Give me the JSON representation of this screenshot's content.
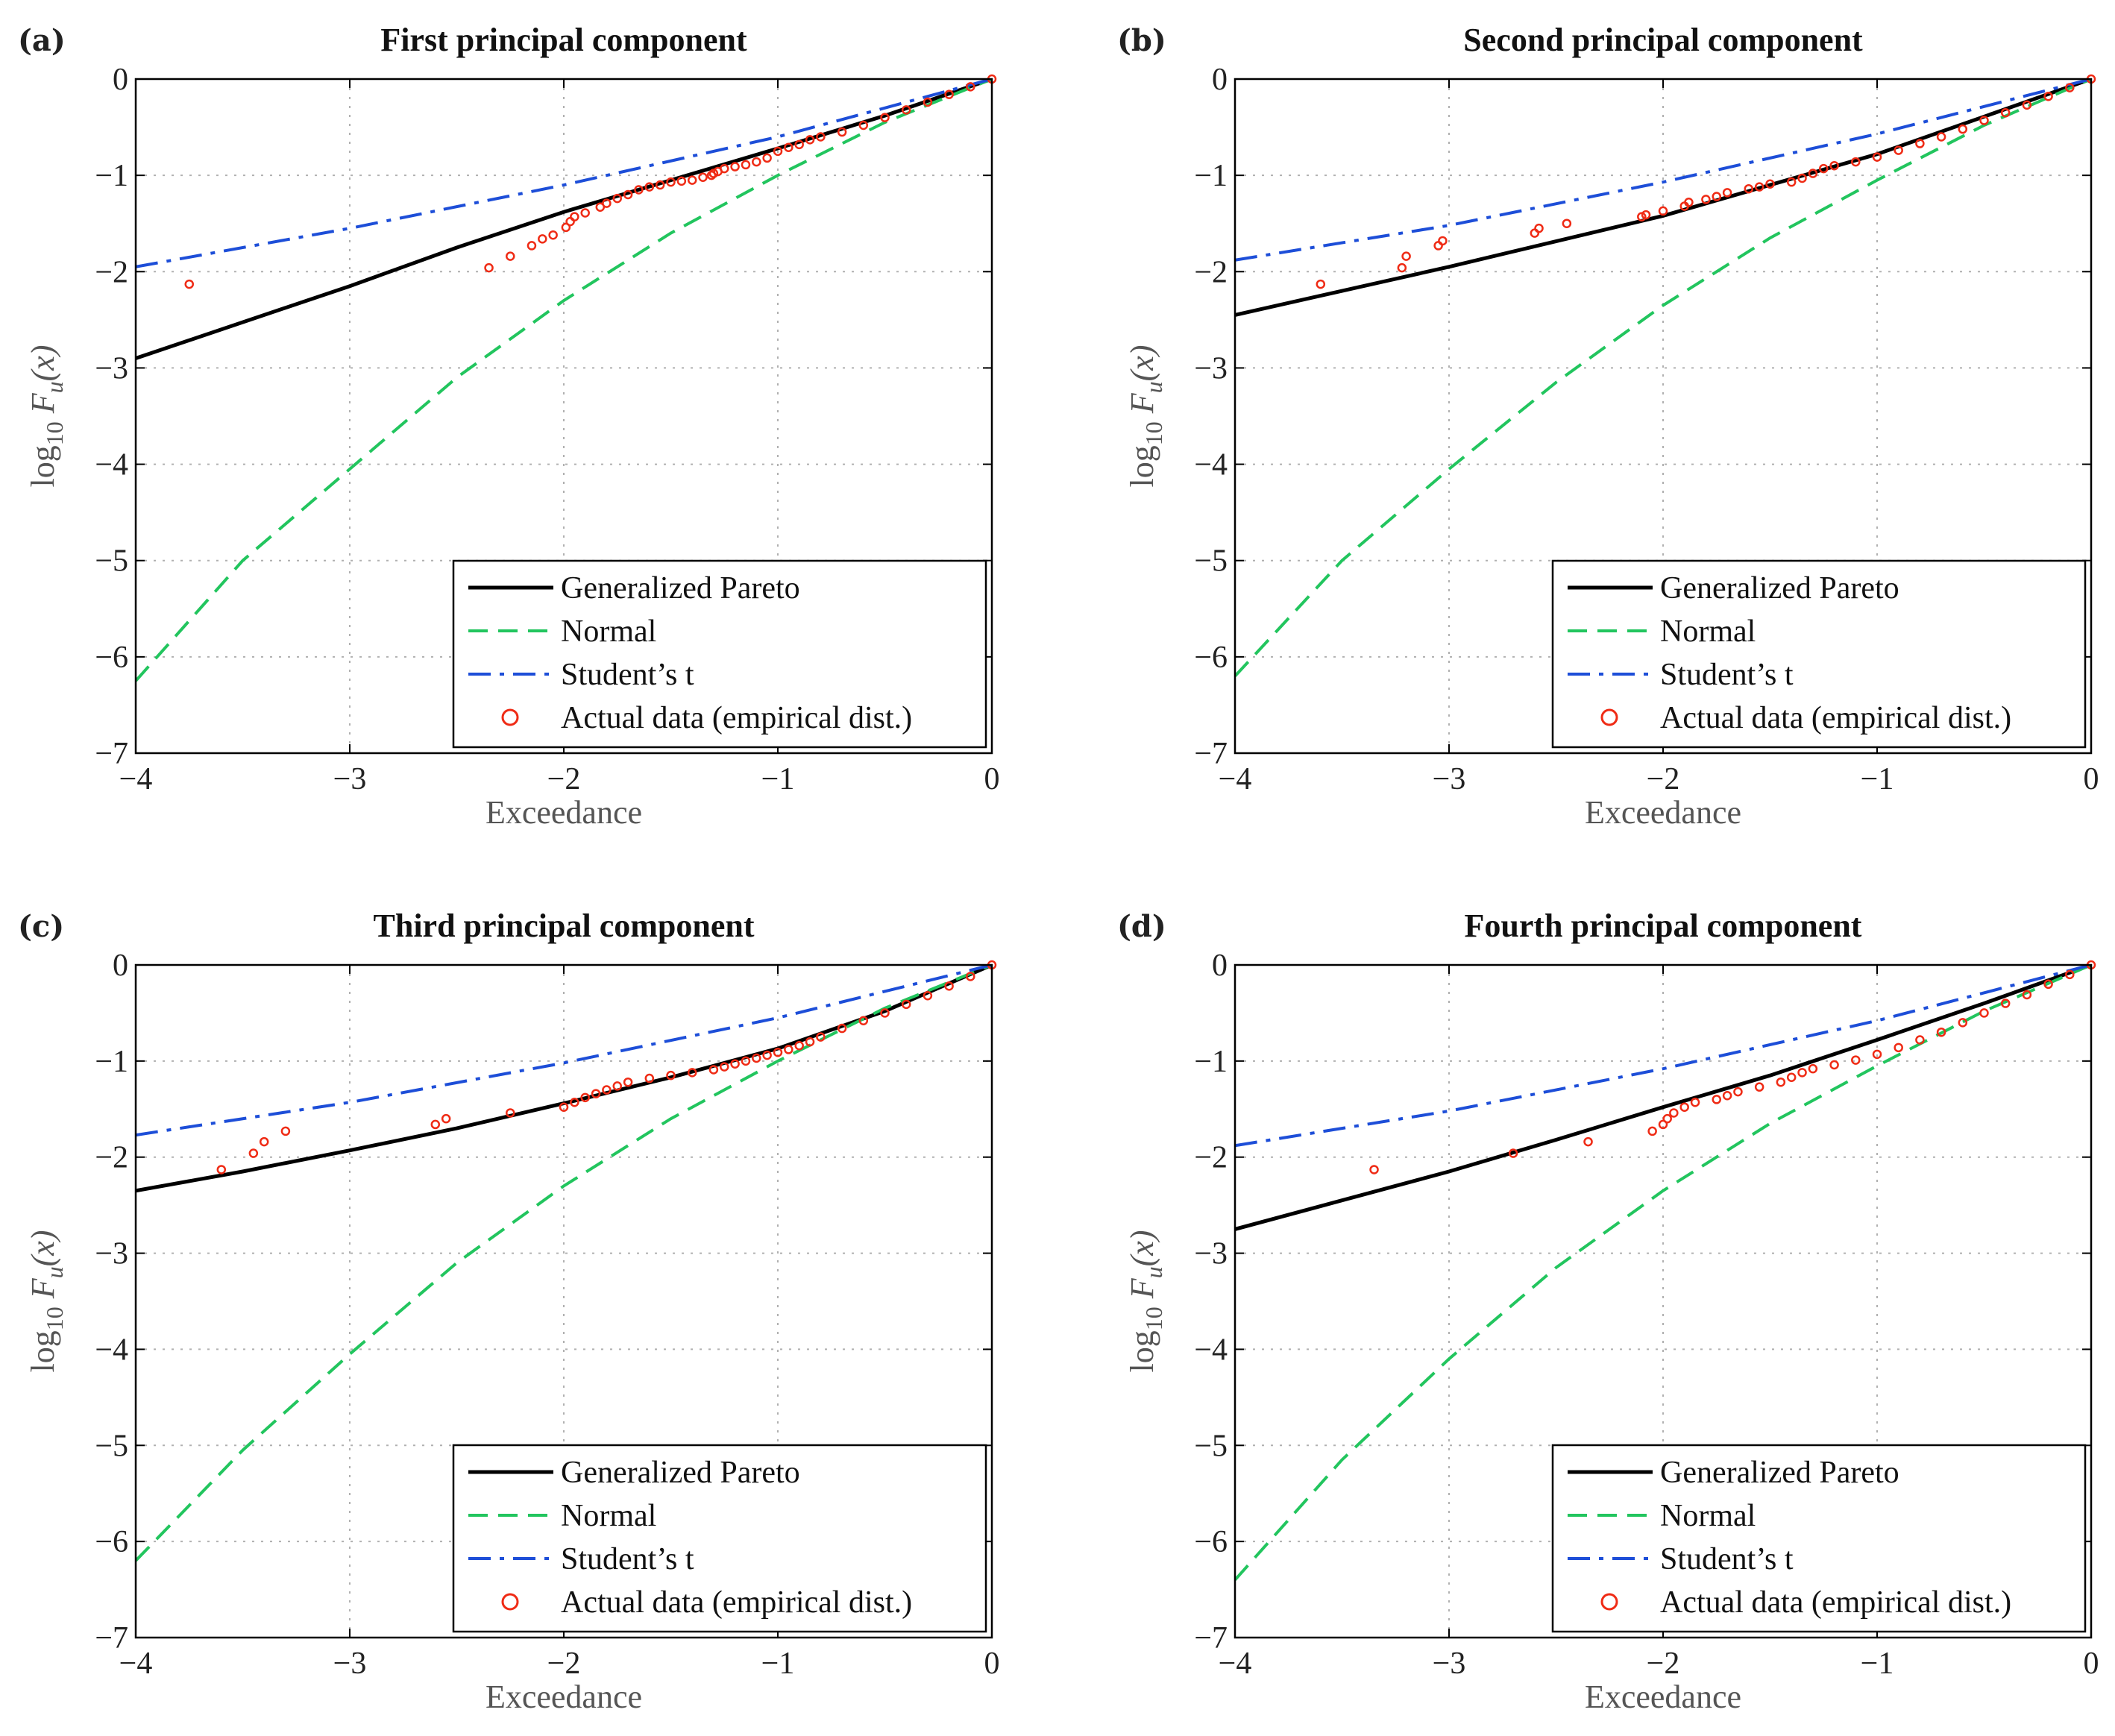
{
  "figure": {
    "xlabel": "Exceedance",
    "ylabel_main": "log",
    "ylabel_sub": "10",
    "ylabel_F": "F",
    "ylabel_u": "u",
    "ylabel_x": "(x)",
    "legend": [
      {
        "label": "Generalized Pareto",
        "style": "solid",
        "color": "#000000"
      },
      {
        "label": "Normal",
        "style": "dashed",
        "color": "#22c55e"
      },
      {
        "label": "Student’s t",
        "style": "dashdot",
        "color": "#1d4ed8"
      },
      {
        "label": "Actual data (empirical dist.)",
        "style": "marker",
        "color": "#ef2b15"
      }
    ]
  },
  "chart_data": [
    {
      "type": "line",
      "panel": "(a)",
      "title": "First principal component",
      "xlabel": "Exceedance",
      "ylabel": "log10 Fu(x)",
      "xlim": [
        -4,
        0
      ],
      "ylim": [
        -7,
        0
      ],
      "xticks": [
        -4,
        -3,
        -2,
        -1,
        0
      ],
      "yticks": [
        0,
        -1,
        -2,
        -3,
        -4,
        -5,
        -6,
        -7
      ],
      "tick_labels_x": [
        "−4",
        "−3",
        "−2",
        "−1",
        "0"
      ],
      "tick_labels_y": [
        "0",
        "−1",
        "−2",
        "−3",
        "−4",
        "−5",
        "−6",
        "−7"
      ],
      "grid": true,
      "legend_position": "bottom-right",
      "series": [
        {
          "name": "Generalized Pareto",
          "x": [
            -4,
            -3,
            -2.5,
            -2,
            -1.5,
            -1,
            -0.5,
            0
          ],
          "y": [
            -2.9,
            -2.15,
            -1.75,
            -1.38,
            -1.05,
            -0.72,
            -0.38,
            0
          ]
        },
        {
          "name": "Normal",
          "x": [
            -4,
            -3.5,
            -3,
            -2.5,
            -2,
            -1.5,
            -1,
            -0.5,
            0
          ],
          "y": [
            -6.25,
            -5.0,
            -4.05,
            -3.1,
            -2.3,
            -1.6,
            -1.0,
            -0.45,
            0
          ]
        },
        {
          "name": "Student's t",
          "x": [
            -4,
            -3,
            -2,
            -1,
            0
          ],
          "y": [
            -1.95,
            -1.55,
            -1.1,
            -0.6,
            0
          ]
        },
        {
          "name": "Actual data (empirical dist.)",
          "x": [
            -3.75,
            -2.35,
            -2.25,
            -2.15,
            -2.1,
            -2.05,
            -1.99,
            -1.97,
            -1.95,
            -1.9,
            -1.83,
            -1.8,
            -1.75,
            -1.7,
            -1.65,
            -1.6,
            -1.55,
            -1.5,
            -1.45,
            -1.4,
            -1.35,
            -1.31,
            -1.3,
            -1.28,
            -1.25,
            -1.2,
            -1.15,
            -1.1,
            -1.05,
            -1.0,
            -0.95,
            -0.9,
            -0.85,
            -0.8,
            -0.7,
            -0.6,
            -0.5,
            -0.4,
            -0.3,
            -0.2,
            -0.1,
            0
          ],
          "y": [
            -2.13,
            -1.96,
            -1.84,
            -1.73,
            -1.66,
            -1.62,
            -1.54,
            -1.48,
            -1.43,
            -1.39,
            -1.33,
            -1.29,
            -1.24,
            -1.2,
            -1.15,
            -1.12,
            -1.1,
            -1.07,
            -1.06,
            -1.05,
            -1.02,
            -1.0,
            -0.98,
            -0.96,
            -0.93,
            -0.91,
            -0.89,
            -0.86,
            -0.82,
            -0.75,
            -0.71,
            -0.68,
            -0.63,
            -0.6,
            -0.55,
            -0.48,
            -0.4,
            -0.32,
            -0.24,
            -0.16,
            -0.08,
            0
          ]
        }
      ]
    },
    {
      "type": "line",
      "panel": "(b)",
      "title": "Second principal component",
      "xlabel": "Exceedance",
      "ylabel": "log10 Fu(x)",
      "xlim": [
        -4,
        0
      ],
      "ylim": [
        -7,
        0
      ],
      "xticks": [
        -4,
        -3,
        -2,
        -1,
        0
      ],
      "yticks": [
        0,
        -1,
        -2,
        -3,
        -4,
        -5,
        -6,
        -7
      ],
      "tick_labels_x": [
        "−4",
        "−3",
        "−2",
        "−1",
        "0"
      ],
      "tick_labels_y": [
        "0",
        "−1",
        "−2",
        "−3",
        "−4",
        "−5",
        "−6",
        "−7"
      ],
      "grid": true,
      "legend_position": "bottom-right",
      "series": [
        {
          "name": "Generalized Pareto",
          "x": [
            -4,
            -3,
            -2,
            -1,
            0
          ],
          "y": [
            -2.45,
            -1.95,
            -1.42,
            -0.78,
            0
          ]
        },
        {
          "name": "Normal",
          "x": [
            -4,
            -3.5,
            -3,
            -2.5,
            -2,
            -1.5,
            -1,
            -0.5,
            0
          ],
          "y": [
            -6.2,
            -5.0,
            -4.05,
            -3.15,
            -2.35,
            -1.65,
            -1.05,
            -0.48,
            0
          ]
        },
        {
          "name": "Student's t",
          "x": [
            -4,
            -3,
            -2,
            -1,
            0
          ],
          "y": [
            -1.88,
            -1.52,
            -1.07,
            -0.57,
            0
          ]
        },
        {
          "name": "Actual data (empirical dist.)",
          "x": [
            -3.6,
            -3.22,
            -3.2,
            -3.05,
            -3.03,
            -2.6,
            -2.58,
            -2.45,
            -2.1,
            -2.08,
            -2.0,
            -1.9,
            -1.88,
            -1.8,
            -1.75,
            -1.7,
            -1.6,
            -1.55,
            -1.5,
            -1.4,
            -1.35,
            -1.3,
            -1.25,
            -1.2,
            -1.1,
            -1.0,
            -0.9,
            -0.8,
            -0.7,
            -0.6,
            -0.5,
            -0.4,
            -0.3,
            -0.2,
            -0.1,
            0
          ],
          "y": [
            -2.13,
            -1.96,
            -1.84,
            -1.73,
            -1.68,
            -1.6,
            -1.55,
            -1.5,
            -1.43,
            -1.41,
            -1.37,
            -1.32,
            -1.28,
            -1.25,
            -1.22,
            -1.18,
            -1.14,
            -1.12,
            -1.09,
            -1.07,
            -1.03,
            -0.98,
            -0.93,
            -0.9,
            -0.86,
            -0.81,
            -0.74,
            -0.67,
            -0.6,
            -0.52,
            -0.43,
            -0.35,
            -0.27,
            -0.18,
            -0.09,
            0
          ]
        }
      ]
    },
    {
      "type": "line",
      "panel": "(c)",
      "title": "Third principal component",
      "xlabel": "Exceedance",
      "ylabel": "log10 Fu(x)",
      "xlim": [
        -4,
        0
      ],
      "ylim": [
        -7,
        0
      ],
      "xticks": [
        -4,
        -3,
        -2,
        -1,
        0
      ],
      "yticks": [
        0,
        -1,
        -2,
        -3,
        -4,
        -5,
        -6,
        -7
      ],
      "tick_labels_x": [
        "−4",
        "−3",
        "−2",
        "−1",
        "0"
      ],
      "tick_labels_y": [
        "0",
        "−1",
        "−2",
        "−3",
        "−4",
        "−5",
        "−6",
        "−7"
      ],
      "grid": true,
      "legend_position": "bottom-right",
      "series": [
        {
          "name": "Generalized Pareto",
          "x": [
            -4,
            -3.5,
            -3,
            -2.5,
            -2,
            -1.5,
            -1,
            -0.5,
            0
          ],
          "y": [
            -2.35,
            -2.15,
            -1.93,
            -1.7,
            -1.44,
            -1.17,
            -0.87,
            -0.48,
            0
          ]
        },
        {
          "name": "Normal",
          "x": [
            -4,
            -3.5,
            -3,
            -2.5,
            -2,
            -1.5,
            -1,
            -0.5,
            0
          ],
          "y": [
            -6.2,
            -5.05,
            -4.05,
            -3.1,
            -2.3,
            -1.6,
            -1.0,
            -0.45,
            0
          ]
        },
        {
          "name": "Student's t",
          "x": [
            -4,
            -3,
            -2,
            -1,
            0
          ],
          "y": [
            -1.77,
            -1.43,
            -1.02,
            -0.55,
            0
          ]
        },
        {
          "name": "Actual data (empirical dist.)",
          "x": [
            -3.6,
            -3.45,
            -3.4,
            -3.3,
            -2.6,
            -2.55,
            -2.25,
            -2.0,
            -1.95,
            -1.9,
            -1.85,
            -1.8,
            -1.75,
            -1.7,
            -1.6,
            -1.5,
            -1.4,
            -1.3,
            -1.25,
            -1.2,
            -1.15,
            -1.1,
            -1.05,
            -1.0,
            -0.95,
            -0.9,
            -0.85,
            -0.8,
            -0.7,
            -0.6,
            -0.5,
            -0.4,
            -0.3,
            -0.2,
            -0.1,
            0
          ],
          "y": [
            -2.13,
            -1.96,
            -1.84,
            -1.73,
            -1.66,
            -1.6,
            -1.54,
            -1.48,
            -1.43,
            -1.38,
            -1.34,
            -1.3,
            -1.26,
            -1.22,
            -1.18,
            -1.15,
            -1.12,
            -1.09,
            -1.06,
            -1.03,
            -1.0,
            -0.97,
            -0.94,
            -0.91,
            -0.88,
            -0.84,
            -0.8,
            -0.75,
            -0.66,
            -0.58,
            -0.5,
            -0.41,
            -0.32,
            -0.22,
            -0.12,
            0
          ]
        }
      ]
    },
    {
      "type": "line",
      "panel": "(d)",
      "title": "Fourth principal component",
      "xlabel": "Exceedance",
      "ylabel": "log10 Fu(x)",
      "xlim": [
        -4,
        0
      ],
      "ylim": [
        -7,
        0
      ],
      "xticks": [
        -4,
        -3,
        -2,
        -1,
        0
      ],
      "yticks": [
        0,
        -1,
        -2,
        -3,
        -4,
        -5,
        -6,
        -7
      ],
      "tick_labels_x": [
        "−4",
        "−3",
        "−2",
        "−1",
        "0"
      ],
      "tick_labels_y": [
        "0",
        "−1",
        "−2",
        "−3",
        "−4",
        "−5",
        "−6",
        "−7"
      ],
      "grid": true,
      "legend_position": "bottom-right",
      "series": [
        {
          "name": "Generalized Pareto",
          "x": [
            -4,
            -3.5,
            -3,
            -2.5,
            -2,
            -1.5,
            -1,
            -0.5,
            0
          ],
          "y": [
            -2.75,
            -2.45,
            -2.15,
            -1.82,
            -1.48,
            -1.15,
            -0.78,
            -0.4,
            0
          ]
        },
        {
          "name": "Normal",
          "x": [
            -4,
            -3.5,
            -3,
            -2.5,
            -2,
            -1.5,
            -1,
            -0.5,
            0
          ],
          "y": [
            -6.4,
            -5.15,
            -4.1,
            -3.15,
            -2.35,
            -1.65,
            -1.05,
            -0.48,
            0
          ]
        },
        {
          "name": "Student's t",
          "x": [
            -4,
            -3,
            -2,
            -1,
            0
          ],
          "y": [
            -1.88,
            -1.52,
            -1.08,
            -0.58,
            0
          ]
        },
        {
          "name": "Actual data (empirical dist.)",
          "x": [
            -3.35,
            -2.7,
            -2.35,
            -2.05,
            -2.0,
            -1.98,
            -1.95,
            -1.9,
            -1.85,
            -1.75,
            -1.7,
            -1.65,
            -1.55,
            -1.45,
            -1.4,
            -1.35,
            -1.3,
            -1.2,
            -1.1,
            -1.0,
            -0.9,
            -0.8,
            -0.7,
            -0.6,
            -0.5,
            -0.4,
            -0.3,
            -0.2,
            -0.1,
            0
          ],
          "y": [
            -2.13,
            -1.96,
            -1.84,
            -1.73,
            -1.66,
            -1.6,
            -1.54,
            -1.48,
            -1.43,
            -1.4,
            -1.36,
            -1.32,
            -1.27,
            -1.22,
            -1.17,
            -1.12,
            -1.08,
            -1.04,
            -0.99,
            -0.93,
            -0.86,
            -0.78,
            -0.7,
            -0.6,
            -0.5,
            -0.4,
            -0.31,
            -0.2,
            -0.1,
            0
          ]
        }
      ]
    }
  ]
}
